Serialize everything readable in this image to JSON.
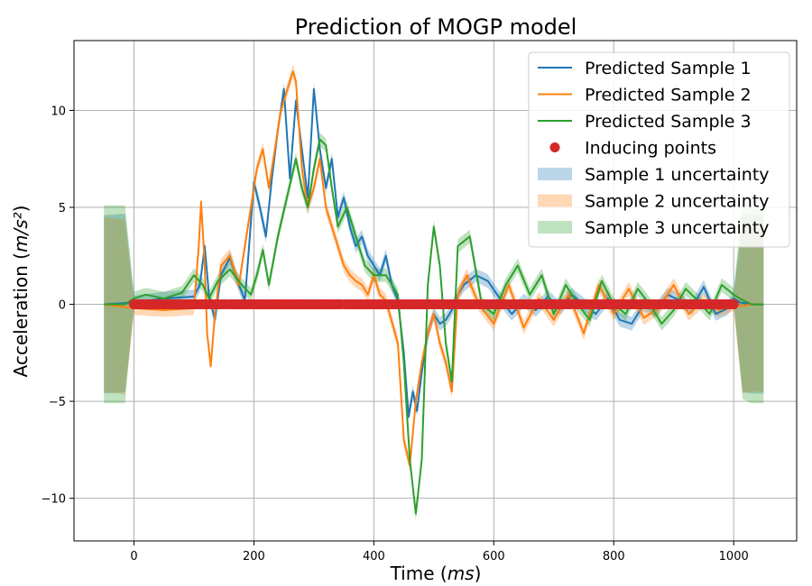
{
  "chart_data": {
    "type": "line",
    "title": "Prediction of MOGP model",
    "xlabel": "Time (ms)",
    "ylabel": "Acceleration (m/s²)",
    "xlim": [
      -100,
      1105
    ],
    "ylim": [
      -12.2,
      13.6
    ],
    "xticks": [
      0,
      200,
      400,
      600,
      800,
      1000
    ],
    "yticks": [
      -10,
      -5,
      0,
      5,
      10
    ],
    "grid": true,
    "legend_position": "top-right",
    "colors": {
      "Predicted Sample 1": "#1f77b4",
      "Predicted Sample 2": "#ff7f0e",
      "Predicted Sample 3": "#2ca02c",
      "Inducing points": "#d62728"
    },
    "series": [
      {
        "name": "Predicted Sample 1",
        "color": "#1f77b4",
        "x": [
          -50,
          0,
          50,
          100,
          110,
          118,
          125,
          135,
          145,
          160,
          175,
          185,
          192,
          200,
          210,
          220,
          230,
          240,
          250,
          260,
          270,
          280,
          290,
          300,
          310,
          320,
          330,
          340,
          350,
          360,
          370,
          380,
          390,
          400,
          410,
          420,
          430,
          440,
          450,
          458,
          465,
          472,
          480,
          490,
          500,
          510,
          520,
          530,
          540,
          550,
          570,
          590,
          610,
          630,
          650,
          670,
          690,
          710,
          730,
          750,
          770,
          790,
          810,
          830,
          850,
          870,
          890,
          910,
          930,
          950,
          970,
          990,
          1000,
          1010,
          1030,
          1050
        ],
        "y": [
          0,
          0.1,
          0.3,
          0.4,
          1.0,
          3.0,
          0.5,
          -0.8,
          1.5,
          2.4,
          1.0,
          0.2,
          3.0,
          6.3,
          5.0,
          3.5,
          6.5,
          9.0,
          11.1,
          6.5,
          10.5,
          8.0,
          5.5,
          11.1,
          8.0,
          6.0,
          7.5,
          4.5,
          5.5,
          4.0,
          3.0,
          3.5,
          2.5,
          2.0,
          1.5,
          2.5,
          1.0,
          0.2,
          -2.5,
          -5.8,
          -4.5,
          -5.5,
          -3.5,
          -1.5,
          -0.5,
          -1.0,
          -0.8,
          -0.3,
          0.5,
          1.0,
          1.5,
          1.2,
          0.3,
          -0.5,
          0.2,
          -0.3,
          0.4,
          -0.2,
          0.5,
          0.0,
          -0.5,
          0.3,
          -0.8,
          -1.0,
          0.0,
          -0.3,
          0.5,
          0.2,
          -0.2,
          0.9,
          -0.5,
          -0.2,
          0.3,
          0.1,
          0,
          0
        ]
      },
      {
        "name": "Predicted Sample 2",
        "color": "#ff7f0e",
        "x": [
          -50,
          0,
          50,
          100,
          108,
          112,
          118,
          122,
          128,
          135,
          145,
          160,
          175,
          185,
          195,
          205,
          215,
          225,
          235,
          245,
          255,
          265,
          270,
          280,
          290,
          300,
          310,
          320,
          330,
          340,
          350,
          360,
          370,
          380,
          390,
          400,
          410,
          420,
          440,
          450,
          460,
          470,
          480,
          490,
          500,
          510,
          520,
          530,
          540,
          555,
          575,
          600,
          625,
          650,
          675,
          700,
          725,
          750,
          775,
          800,
          825,
          850,
          875,
          900,
          925,
          950,
          975,
          1000,
          1010,
          1030,
          1050
        ],
        "y": [
          0,
          -0.2,
          -0.3,
          -0.2,
          3.0,
          5.3,
          2.0,
          -1.5,
          -3.2,
          -0.5,
          2.0,
          2.5,
          1.0,
          3.0,
          5.0,
          7.0,
          8.0,
          6.0,
          8.0,
          10.0,
          11.0,
          12.0,
          11.5,
          7.0,
          5.0,
          6.0,
          7.5,
          5.0,
          4.0,
          3.0,
          2.0,
          1.5,
          1.2,
          1.0,
          0.5,
          1.5,
          0.5,
          0.2,
          -2.0,
          -7.0,
          -8.3,
          -5.0,
          -3.0,
          -1.5,
          -0.5,
          -2.0,
          -3.0,
          -4.5,
          0.5,
          1.5,
          0.0,
          -1.0,
          1.0,
          -1.2,
          0.3,
          -0.8,
          0.5,
          -1.5,
          1.0,
          -0.5,
          0.8,
          -0.7,
          -0.2,
          1.0,
          -0.5,
          0.2,
          -0.3,
          0.0,
          -0.1,
          0,
          0
        ]
      },
      {
        "name": "Predicted Sample 3",
        "color": "#2ca02c",
        "x": [
          -50,
          -15,
          0,
          20,
          50,
          80,
          100,
          115,
          125,
          140,
          160,
          180,
          195,
          205,
          215,
          225,
          240,
          255,
          270,
          280,
          290,
          300,
          310,
          320,
          330,
          340,
          355,
          370,
          385,
          400,
          420,
          440,
          450,
          460,
          470,
          480,
          490,
          500,
          510,
          520,
          530,
          540,
          560,
          580,
          600,
          620,
          640,
          660,
          680,
          700,
          720,
          740,
          760,
          780,
          800,
          820,
          840,
          860,
          880,
          900,
          920,
          940,
          960,
          980,
          1000,
          1010,
          1030,
          1050
        ],
        "y": [
          0,
          0,
          0.3,
          0.5,
          0.3,
          0.6,
          1.5,
          1.0,
          0.3,
          1.2,
          1.8,
          1.0,
          0.5,
          1.5,
          2.8,
          1.0,
          3.5,
          5.5,
          7.5,
          6.0,
          5.0,
          7.0,
          8.5,
          8.2,
          6.0,
          4.0,
          5.0,
          3.5,
          2.0,
          1.5,
          1.5,
          0.5,
          -3.0,
          -8.0,
          -10.8,
          -8.0,
          1.0,
          4.0,
          2.0,
          -2.0,
          -4.0,
          3.0,
          3.5,
          0.0,
          -0.5,
          1.0,
          2.0,
          0.5,
          1.5,
          -0.5,
          1.0,
          0.0,
          -0.8,
          1.2,
          0.0,
          -0.5,
          0.8,
          0.0,
          -1.0,
          -0.3,
          0.8,
          0.2,
          -0.5,
          1.0,
          0.5,
          0.3,
          0,
          0
        ]
      }
    ],
    "uncertainty_bands": [
      {
        "name": "Sample 1 uncertainty",
        "color": "#1f77b4",
        "opacity": 0.3,
        "halfwidth_inner": 0.35,
        "halfwidth_edge": 4.6
      },
      {
        "name": "Sample 2 uncertainty",
        "color": "#ff7f0e",
        "opacity": 0.3,
        "halfwidth_inner": 0.35,
        "halfwidth_edge": 4.5
      },
      {
        "name": "Sample 3 uncertainty",
        "color": "#2ca02c",
        "opacity": 0.3,
        "halfwidth_inner": 0.35,
        "halfwidth_edge": 5.1
      }
    ],
    "inducing_points": {
      "name": "Inducing points",
      "color": "#d62728",
      "x_start": 0,
      "x_end": 1000,
      "count": 200,
      "y": 0
    },
    "legend": [
      {
        "label": "Predicted Sample 1",
        "kind": "line",
        "color": "#1f77b4"
      },
      {
        "label": "Predicted Sample 2",
        "kind": "line",
        "color": "#ff7f0e"
      },
      {
        "label": "Predicted Sample 3",
        "kind": "line",
        "color": "#2ca02c"
      },
      {
        "label": "Inducing points",
        "kind": "marker",
        "color": "#d62728"
      },
      {
        "label": "Sample 1 uncertainty",
        "kind": "patch",
        "color": "#1f77b4"
      },
      {
        "label": "Sample 2 uncertainty",
        "kind": "patch",
        "color": "#ff7f0e"
      },
      {
        "label": "Sample 3 uncertainty",
        "kind": "patch",
        "color": "#2ca02c"
      }
    ]
  }
}
